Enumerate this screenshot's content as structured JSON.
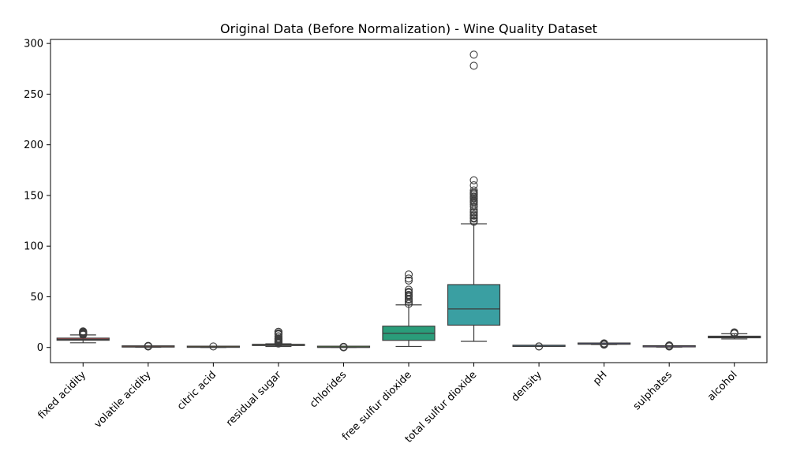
{
  "chart_data": {
    "type": "box",
    "title": "Original Data (Before Normalization) - Wine Quality Dataset",
    "xlabel": "",
    "ylabel": "",
    "ylim": [
      -15,
      304
    ],
    "yticks": [
      "0",
      "50",
      "100",
      "150",
      "200",
      "250",
      "300"
    ],
    "ytick_values": [
      0,
      50,
      100,
      150,
      200,
      250,
      300
    ],
    "grid": false,
    "categories": [
      "fixed acidity",
      "volatile acidity",
      "citric acid",
      "residual sugar",
      "chlorides",
      "free sulfur dioxide",
      "total sulfur dioxide",
      "density",
      "pH",
      "sulphates",
      "alcohol"
    ],
    "boxes": [
      {
        "name": "fixed acidity",
        "color": "#c44e52",
        "whislo": 4.6,
        "q1": 7.1,
        "med": 7.9,
        "q3": 9.2,
        "whishi": 12.3,
        "fliers": [
          12.5,
          12.8,
          13.0,
          13.3,
          13.7,
          14.0,
          14.3,
          15.0,
          15.6,
          15.9
        ]
      },
      {
        "name": "volatile acidity",
        "color": "#b55d3d",
        "whislo": 0.12,
        "q1": 0.39,
        "med": 0.52,
        "q3": 0.64,
        "whishi": 1.01,
        "fliers": [
          1.04,
          1.09,
          1.13,
          1.18,
          1.24,
          1.33,
          1.58
        ]
      },
      {
        "name": "citric acid",
        "color": "#9f7a26",
        "whislo": 0.0,
        "q1": 0.09,
        "med": 0.26,
        "q3": 0.42,
        "whishi": 0.79,
        "fliers": [
          1.0
        ]
      },
      {
        "name": "residual sugar",
        "color": "#8a8a2f",
        "whislo": 0.9,
        "q1": 1.9,
        "med": 2.2,
        "q3": 2.6,
        "whishi": 3.6,
        "fliers": [
          3.8,
          4.2,
          4.6,
          5.1,
          5.5,
          6.0,
          6.4,
          7.0,
          7.8,
          8.3,
          8.8,
          9.0,
          10.7,
          11.0,
          12.9,
          13.4,
          13.9,
          15.4,
          15.5
        ]
      },
      {
        "name": "chlorides",
        "color": "#5a9a3a",
        "whislo": 0.012,
        "q1": 0.07,
        "med": 0.079,
        "q3": 0.09,
        "whishi": 0.119,
        "fliers": [
          0.12,
          0.2,
          0.3,
          0.4,
          0.5,
          0.61
        ]
      },
      {
        "name": "free sulfur dioxide",
        "color": "#2a9d7a",
        "whislo": 1,
        "q1": 7,
        "med": 14,
        "q3": 21,
        "whishi": 42,
        "fliers": [
          43,
          45,
          47,
          48,
          50,
          51,
          52,
          54,
          55,
          57,
          66,
          68,
          72
        ]
      },
      {
        "name": "total sulfur dioxide",
        "color": "#3a9fa2",
        "whislo": 6,
        "q1": 22,
        "med": 38,
        "q3": 62,
        "whishi": 122,
        "fliers": [
          124,
          125,
          127,
          128,
          130,
          131,
          133,
          134,
          136,
          139,
          141,
          143,
          144,
          145,
          147,
          148,
          149,
          151,
          152,
          153,
          155,
          160,
          165,
          278,
          289
        ]
      },
      {
        "name": "density",
        "color": "#3a86b5",
        "whislo": 0.9901,
        "q1": 0.9956,
        "med": 0.9968,
        "q3": 0.9978,
        "whishi": 1.0022,
        "fliers": [
          0.99,
          1.003
        ]
      },
      {
        "name": "pH",
        "color": "#6b76c9",
        "whislo": 2.92,
        "q1": 3.21,
        "med": 3.31,
        "q3": 3.4,
        "whishi": 3.68,
        "fliers": [
          2.74,
          2.86,
          2.88,
          3.69,
          3.71,
          3.78,
          3.85,
          3.9,
          4.01
        ]
      },
      {
        "name": "sulphates",
        "color": "#a071c4",
        "whislo": 0.33,
        "q1": 0.55,
        "med": 0.62,
        "q3": 0.73,
        "whishi": 0.99,
        "fliers": [
          1.0,
          1.05,
          1.1,
          1.17,
          1.26,
          1.36,
          1.62,
          1.98,
          2.0
        ]
      },
      {
        "name": "alcohol",
        "color": "#c66fa8",
        "whislo": 8.4,
        "q1": 9.5,
        "med": 10.2,
        "q3": 11.1,
        "whishi": 13.5,
        "fliers": [
          13.6,
          14.0,
          14.9
        ]
      }
    ]
  }
}
